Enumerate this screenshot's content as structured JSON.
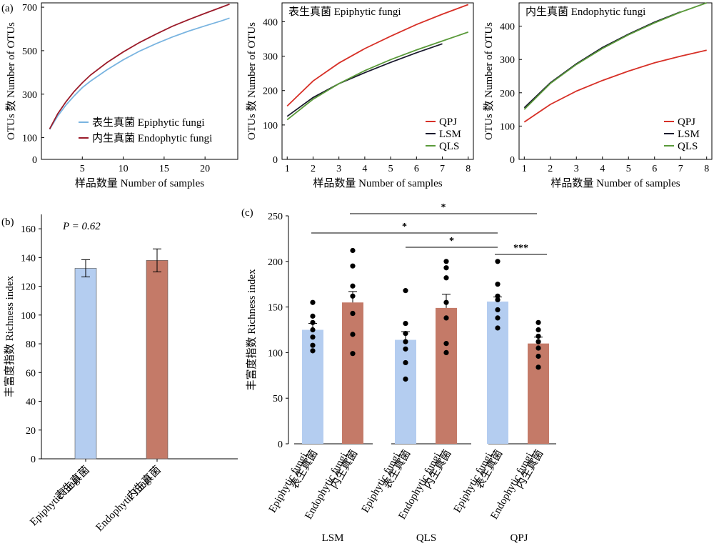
{
  "panel_labels": {
    "a": "(a)",
    "b": "(b)",
    "c": "(c)"
  },
  "colors": {
    "red": "#d73027",
    "dark": "#1a1a2e",
    "green": "#5a9a3a",
    "light_blue": "#79b4e0",
    "dark_red": "#9b1b2a",
    "bar_blue": "#b4cdf0",
    "bar_red": "#c47a68"
  },
  "chart_data": [
    {
      "id": "a1",
      "type": "line",
      "xlabel": "样品数量 Number of samples",
      "ylabel": "OTUs 数 Number of OTUs",
      "xlim": [
        0,
        24
      ],
      "ylim": [
        0,
        720
      ],
      "xticks": [
        5,
        10,
        15,
        20
      ],
      "yticks": [
        0,
        100,
        300,
        500,
        700
      ],
      "series": [
        {
          "name": "表生真菌 Epiphytic fungi",
          "color": "#79b4e0",
          "x": [
            1,
            2,
            3,
            4,
            5,
            6,
            8,
            10,
            12,
            14,
            16,
            18,
            20,
            22,
            23
          ],
          "y": [
            138,
            200,
            250,
            292,
            330,
            360,
            412,
            458,
            498,
            532,
            563,
            590,
            614,
            637,
            650
          ]
        },
        {
          "name": "内生真菌 Endophytic fungi",
          "color": "#9b1b2a",
          "x": [
            1,
            2,
            3,
            4,
            5,
            6,
            8,
            10,
            12,
            14,
            16,
            18,
            20,
            22,
            23
          ],
          "y": [
            140,
            210,
            265,
            312,
            352,
            388,
            445,
            494,
            538,
            576,
            612,
            643,
            672,
            700,
            714
          ]
        }
      ],
      "legend_position": "bottom-right"
    },
    {
      "id": "a2",
      "type": "line",
      "title": "表生真菌 Epiphytic fungi",
      "xlabel": "样品数量 Number of samples",
      "ylabel": "OTUs 数 Number of OTUs",
      "xlim": [
        0.8,
        8.2
      ],
      "ylim": [
        0,
        455
      ],
      "xticks": [
        1,
        2,
        3,
        4,
        5,
        6,
        7,
        8
      ],
      "yticks": [
        0,
        100,
        200,
        300,
        400
      ],
      "series": [
        {
          "name": "QPJ",
          "color": "#d73027",
          "x": [
            1,
            2,
            3,
            4,
            5,
            6,
            7,
            8
          ],
          "y": [
            155,
            228,
            280,
            322,
            358,
            392,
            422,
            450
          ]
        },
        {
          "name": "LSM",
          "color": "#1a1a2e",
          "x": [
            1,
            2,
            3,
            4,
            5,
            6,
            7
          ],
          "y": [
            125,
            180,
            220,
            252,
            282,
            310,
            336
          ]
        },
        {
          "name": "QLS",
          "color": "#5a9a3a",
          "x": [
            1,
            2,
            3,
            4,
            5,
            6,
            7,
            8
          ],
          "y": [
            115,
            175,
            220,
            258,
            290,
            318,
            344,
            370
          ]
        }
      ],
      "legend_position": "bottom-right"
    },
    {
      "id": "a3",
      "type": "line",
      "title": "内生真菌 Endophytic fungi",
      "xlabel": "样品数量 Number of samples",
      "ylabel": "OTUs 数 Number of OTUs",
      "xlim": [
        0.8,
        8.2
      ],
      "ylim": [
        0,
        470
      ],
      "xticks": [
        1,
        2,
        3,
        4,
        5,
        6,
        7,
        8
      ],
      "yticks": [
        0,
        100,
        200,
        300,
        400
      ],
      "series": [
        {
          "name": "QPJ",
          "color": "#d73027",
          "x": [
            1,
            2,
            3,
            4,
            5,
            6,
            7,
            8
          ],
          "y": [
            112,
            165,
            205,
            237,
            265,
            290,
            310,
            328
          ]
        },
        {
          "name": "LSM",
          "color": "#1a1a2e",
          "x": [
            1,
            2,
            3,
            4,
            5,
            6,
            7
          ],
          "y": [
            155,
            230,
            287,
            336,
            376,
            412,
            443
          ]
        },
        {
          "name": "QLS",
          "color": "#5a9a3a",
          "x": [
            1,
            2,
            3,
            4,
            5,
            6,
            7,
            8
          ],
          "y": [
            150,
            228,
            285,
            333,
            374,
            410,
            442,
            470
          ]
        }
      ],
      "legend_position": "bottom-right"
    },
    {
      "id": "b",
      "type": "bar",
      "ylabel": "丰富度指数 Richness index",
      "ylim": [
        0,
        170
      ],
      "yticks": [
        0,
        20,
        40,
        60,
        80,
        100,
        120,
        140,
        160
      ],
      "annotation": "P = 0.62",
      "categories": [
        {
          "cn": "表生真菌",
          "en": "Epiphytic fungi"
        },
        {
          "cn": "内生真菌",
          "en": "Endophytic fungi"
        }
      ],
      "values": [
        132.5,
        138
      ],
      "errors": [
        6,
        8
      ],
      "colors": [
        "#b4cdf0",
        "#c47a68"
      ]
    },
    {
      "id": "c",
      "type": "bar",
      "ylabel": "丰富度指数 Richness index",
      "ylim": [
        0,
        250
      ],
      "yticks": [
        0,
        50,
        100,
        150,
        200,
        250
      ],
      "groups": [
        "LSM",
        "QLS",
        "QPJ"
      ],
      "categories": [
        {
          "cn": "表生真菌",
          "en": "Epiphytic fungi",
          "group": "LSM"
        },
        {
          "cn": "内生真菌",
          "en": "Endophytic fungi",
          "group": "LSM"
        },
        {
          "cn": "表生真菌",
          "en": "Epiphytic fungi",
          "group": "QLS"
        },
        {
          "cn": "内生真菌",
          "en": "Endophytic fungi",
          "group": "QLS"
        },
        {
          "cn": "表生真菌",
          "en": "Epiphytic fungi",
          "group": "QPJ"
        },
        {
          "cn": "内生真菌",
          "en": "Endophytic fungi",
          "group": "QPJ"
        }
      ],
      "values": [
        125,
        155,
        114,
        149,
        156,
        110
      ],
      "errors": [
        7,
        12,
        9,
        15,
        5,
        7
      ],
      "colors": [
        "#b4cdf0",
        "#c47a68",
        "#b4cdf0",
        "#c47a68",
        "#b4cdf0",
        "#c47a68"
      ],
      "points": [
        [
          155,
          140,
          133,
          125,
          117,
          108,
          102
        ],
        [
          212,
          195,
          173,
          162,
          143,
          120,
          99
        ],
        [
          168,
          132,
          121,
          112,
          104,
          89,
          71
        ],
        [
          200,
          193,
          182,
          155,
          138,
          110,
          100
        ],
        [
          200,
          175,
          162,
          158,
          147,
          138,
          127
        ],
        [
          133,
          125,
          118,
          112,
          105,
          96,
          84
        ]
      ],
      "significance": [
        {
          "from": 1,
          "to": 5,
          "label": "*"
        },
        {
          "from": 0,
          "to": 4,
          "label": "*"
        },
        {
          "from": 2,
          "to": 4,
          "label": "*"
        },
        {
          "from": 4,
          "to": 5,
          "label": "***"
        }
      ]
    }
  ]
}
